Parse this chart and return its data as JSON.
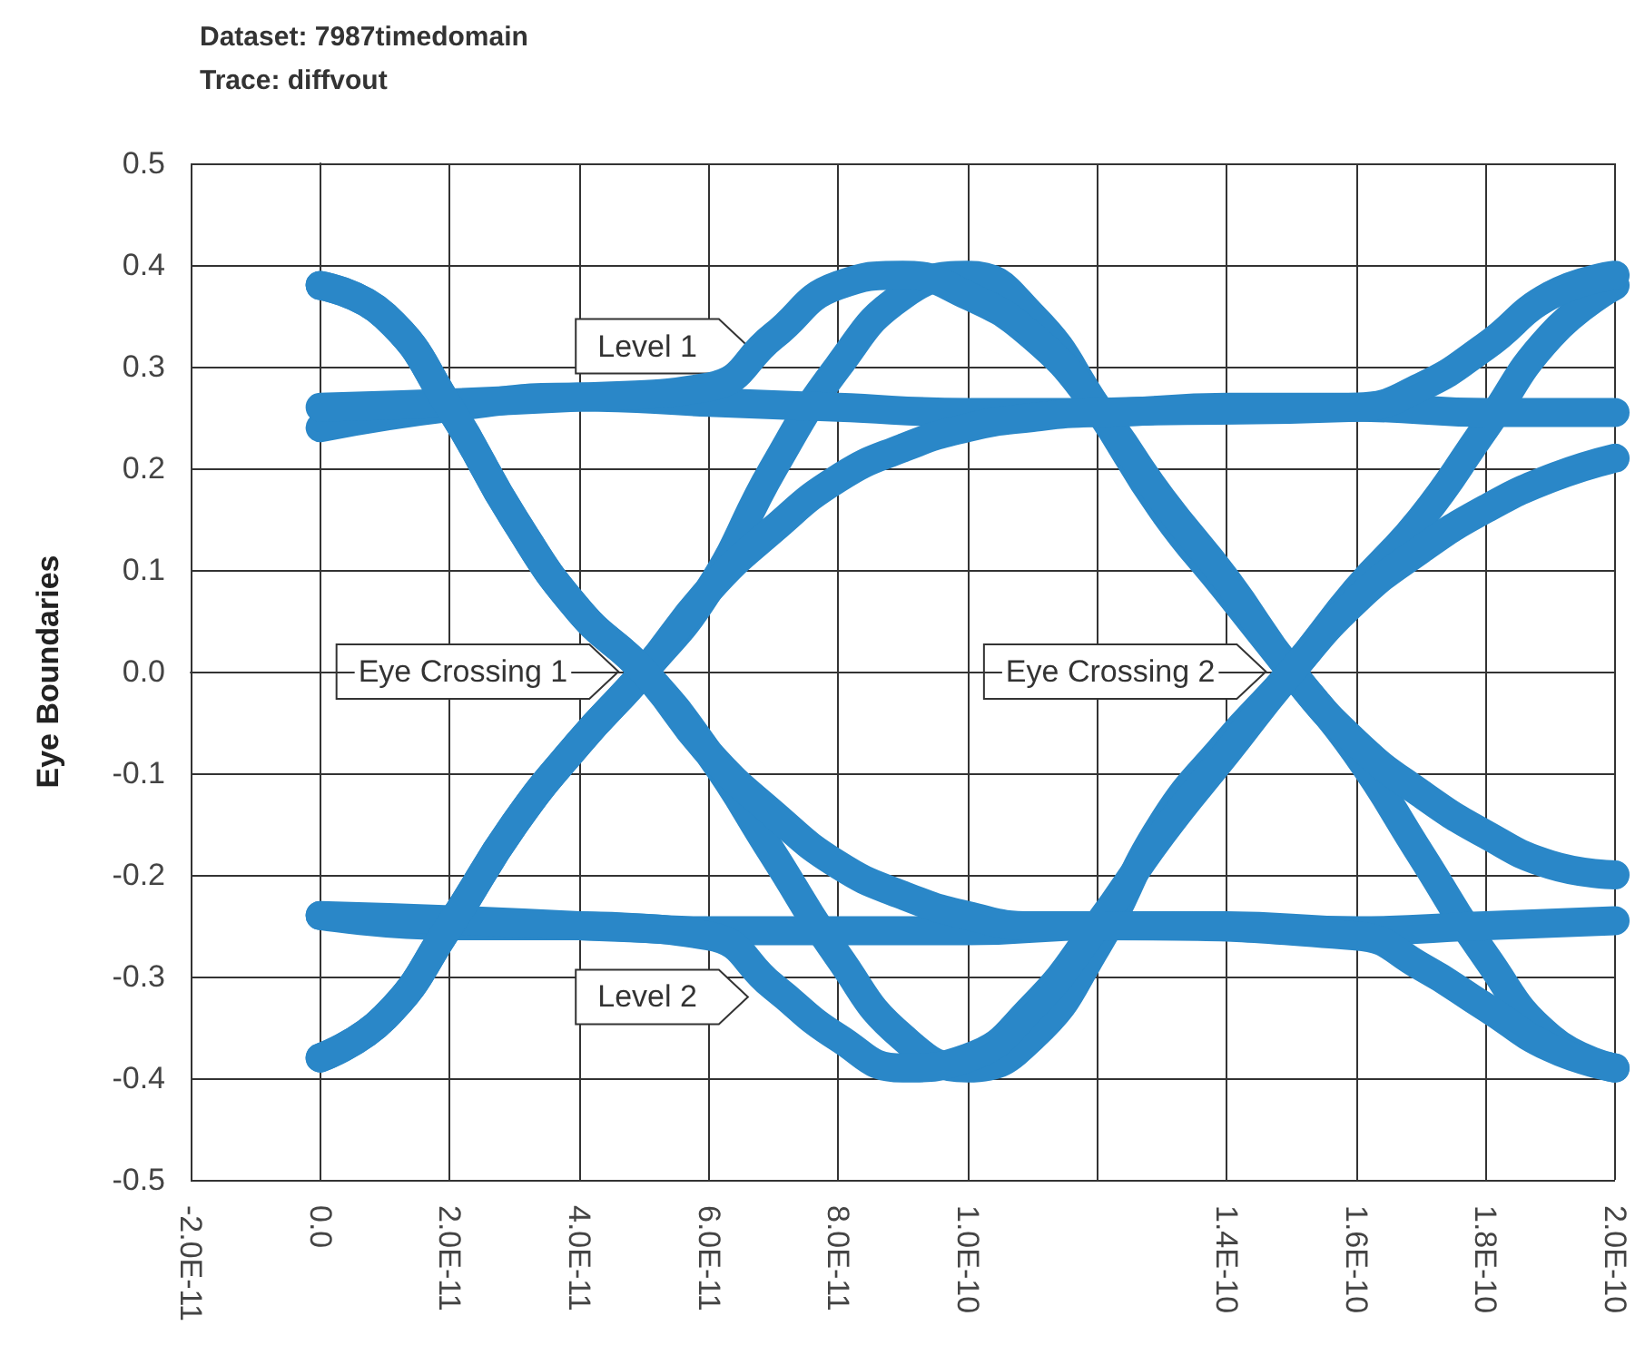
{
  "chart_data": {
    "type": "line",
    "title": "Dataset: 7987timedomain",
    "subtitle": "Trace: diffvout",
    "ylabel": "Eye Boundaries",
    "xlim": [
      -2e-11,
      2e-10
    ],
    "xticks": [
      {
        "value": -2e-11,
        "label": "-2.0E-11"
      },
      {
        "value": 0,
        "label": "0.0"
      },
      {
        "value": 2e-11,
        "label": "2.0E-11"
      },
      {
        "value": 4e-11,
        "label": "4.0E-11"
      },
      {
        "value": 6e-11,
        "label": "6.0E-11"
      },
      {
        "value": 8e-11,
        "label": "8.0E-11"
      },
      {
        "value": 1e-10,
        "label": "1.0E-10"
      },
      {
        "value": 1.2e-10,
        "label": null
      },
      {
        "value": 1.4e-10,
        "label": "1.4E-10"
      },
      {
        "value": 1.6e-10,
        "label": "1.6E-10"
      },
      {
        "value": 1.8e-10,
        "label": "1.8E-10"
      },
      {
        "value": 2e-10,
        "label": "2.0E-10"
      }
    ],
    "ylim": [
      -0.5,
      0.5
    ],
    "yticks": [
      -0.5,
      -0.4,
      -0.3,
      -0.2,
      -0.1,
      {
        "value": 0,
        "label": "0.0"
      },
      0.1,
      0.2,
      0.3,
      0.4,
      0.5
    ],
    "grid": true,
    "line_style": "solid",
    "series": [
      {
        "color": "#2a87c8",
        "x": [
          0,
          1e-11,
          2e-11,
          3e-11,
          4e-11,
          5e-11,
          6e-11,
          7e-11,
          8e-11,
          9e-11,
          1e-10,
          1.1e-10,
          1.2e-10,
          1.3e-10,
          1.4e-10,
          1.5e-10,
          1.6e-10,
          1.7e-10,
          1.8e-10,
          1.9e-10,
          2e-10
        ],
        "values": [
          0.38,
          0.35,
          0.26,
          0.15,
          0.06,
          0.0,
          -0.08,
          -0.18,
          -0.28,
          -0.36,
          -0.39,
          -0.36,
          -0.27,
          -0.15,
          -0.07,
          0.0,
          0.08,
          0.15,
          0.24,
          0.33,
          0.38
        ]
      },
      {
        "color": "#2a87c8",
        "x": [
          0,
          1e-11,
          2e-11,
          3e-11,
          4e-11,
          5e-11,
          6e-11,
          7e-11,
          8e-11,
          9e-11,
          1e-10,
          1.1e-10,
          1.2e-10,
          1.3e-10,
          1.4e-10,
          1.5e-10,
          1.6e-10,
          1.7e-10,
          1.8e-10,
          1.9e-10,
          2e-10
        ],
        "values": [
          -0.38,
          -0.34,
          -0.25,
          -0.15,
          -0.07,
          0.0,
          0.08,
          0.2,
          0.3,
          0.37,
          0.39,
          0.35,
          0.26,
          0.16,
          0.08,
          0.0,
          -0.08,
          -0.18,
          -0.28,
          -0.36,
          -0.39
        ]
      },
      {
        "color": "#2a87c8",
        "x": [
          0,
          2e-11,
          4e-11,
          6e-11,
          8e-11,
          1e-10,
          1.2e-10,
          1.4e-10,
          1.6e-10,
          1.8e-10,
          2e-10
        ],
        "values": [
          0.24,
          0.26,
          0.27,
          0.265,
          0.26,
          0.255,
          0.255,
          0.26,
          0.26,
          0.255,
          0.255
        ]
      },
      {
        "color": "#2a87c8",
        "x": [
          0,
          2e-11,
          4e-11,
          6e-11,
          8e-11,
          1e-10,
          1.2e-10,
          1.4e-10,
          1.6e-10,
          1.8e-10,
          2e-10
        ],
        "values": [
          -0.24,
          -0.25,
          -0.25,
          -0.255,
          -0.255,
          -0.255,
          -0.25,
          -0.25,
          -0.255,
          -0.25,
          -0.245
        ]
      },
      {
        "color": "#2a87c8",
        "x": [
          0,
          4e-11,
          6e-11,
          7e-11,
          8e-11,
          9e-11,
          1e-10,
          1.1e-10,
          1.2e-10,
          1.3e-10,
          1.4e-10,
          1.5e-10,
          1.6e-10,
          1.7e-10,
          1.8e-10,
          1.9e-10,
          2e-10
        ],
        "values": [
          0.26,
          0.27,
          0.28,
          0.33,
          0.38,
          0.39,
          0.37,
          0.33,
          0.26,
          0.17,
          0.09,
          0.0,
          -0.07,
          -0.12,
          -0.16,
          -0.19,
          -0.2
        ]
      },
      {
        "color": "#2a87c8",
        "x": [
          0,
          4e-11,
          6e-11,
          7e-11,
          8e-11,
          9e-11,
          1e-10,
          1.1e-10,
          1.2e-10,
          1.3e-10,
          1.4e-10,
          1.5e-10,
          1.6e-10,
          1.7e-10,
          1.8e-10,
          1.9e-10,
          2e-10
        ],
        "values": [
          -0.24,
          -0.25,
          -0.26,
          -0.31,
          -0.36,
          -0.39,
          -0.38,
          -0.33,
          -0.25,
          -0.16,
          -0.08,
          0.0,
          0.07,
          0.12,
          0.16,
          0.19,
          0.21
        ]
      },
      {
        "color": "#2a87c8",
        "x": [
          0,
          1e-11,
          2e-11,
          3e-11,
          4e-11,
          5e-11,
          6e-11,
          7e-11,
          8e-11,
          9e-11,
          1e-10,
          1.1e-10,
          1.2e-10,
          1.6e-10,
          1.7e-10,
          1.8e-10,
          1.9e-10,
          2e-10
        ],
        "values": [
          -0.38,
          -0.34,
          -0.25,
          -0.15,
          -0.07,
          0.0,
          0.08,
          0.14,
          0.19,
          0.22,
          0.24,
          0.25,
          0.255,
          0.26,
          0.28,
          0.32,
          0.37,
          0.39
        ]
      },
      {
        "color": "#2a87c8",
        "x": [
          0,
          1e-11,
          2e-11,
          3e-11,
          4e-11,
          5e-11,
          6e-11,
          7e-11,
          8e-11,
          9e-11,
          1e-10,
          1.1e-10,
          1.2e-10,
          1.6e-10,
          1.7e-10,
          1.8e-10,
          1.9e-10,
          2e-10
        ],
        "values": [
          0.38,
          0.35,
          0.26,
          0.15,
          0.06,
          0.0,
          -0.08,
          -0.14,
          -0.19,
          -0.22,
          -0.24,
          -0.25,
          -0.25,
          -0.26,
          -0.29,
          -0.33,
          -0.37,
          -0.39
        ]
      }
    ],
    "annotations": [
      {
        "text": "Level 1",
        "x": 7e-11,
        "y": 0.32
      },
      {
        "text": "Eye Crossing 1",
        "x": 5e-11,
        "y": 0
      },
      {
        "text": "Eye Crossing 2",
        "x": 1.5e-10,
        "y": 0
      },
      {
        "text": "Level 2",
        "x": 7e-11,
        "y": -0.32
      }
    ]
  }
}
